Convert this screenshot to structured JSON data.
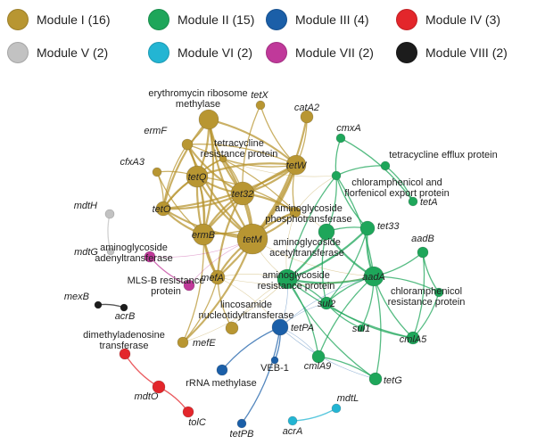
{
  "legend": [
    {
      "label": "Module I (16)",
      "color": "#b89632"
    },
    {
      "label": "Module II (15)",
      "color": "#1ea65a"
    },
    {
      "label": "Module III (4)",
      "color": "#1b5fa8"
    },
    {
      "label": "Module IV (3)",
      "color": "#e3262b"
    },
    {
      "label": "Module V (2)",
      "color": "#c2c2c2"
    },
    {
      "label": "Module VI (2)",
      "color": "#23b5d3"
    },
    {
      "label": "Module VII (2)",
      "color": "#c0399a"
    },
    {
      "label": "Module VIII (2)",
      "color": "#1c1c1c"
    }
  ],
  "nodes": [
    {
      "id": "ery",
      "module": 0,
      "label": "erythromycin ribosome\nmethylase",
      "italic": false
    },
    {
      "id": "tetX",
      "module": 0,
      "label": "tetX",
      "italic": true
    },
    {
      "id": "catA2",
      "module": 0,
      "label": "catA2",
      "italic": true
    },
    {
      "id": "ermF",
      "module": 0,
      "label": "ermF",
      "italic": true
    },
    {
      "id": "trp",
      "module": 0,
      "label": "tetracycline\nresistance protein",
      "italic": false
    },
    {
      "id": "tetW",
      "module": 0,
      "label": "tetW",
      "italic": true
    },
    {
      "id": "cfxA3",
      "module": 0,
      "label": "cfxA3",
      "italic": true
    },
    {
      "id": "tetQ",
      "module": 0,
      "label": "tetQ",
      "italic": true
    },
    {
      "id": "tet32",
      "module": 0,
      "label": "tet32",
      "italic": true
    },
    {
      "id": "tetO",
      "module": 0,
      "label": "tetO",
      "italic": true
    },
    {
      "id": "aph",
      "module": 0,
      "label": "aminoglycoside\nphosphotransferase",
      "italic": false
    },
    {
      "id": "ermB",
      "module": 0,
      "label": "ermB",
      "italic": true
    },
    {
      "id": "tetM",
      "module": 0,
      "label": "tetM",
      "italic": true
    },
    {
      "id": "mefA",
      "module": 0,
      "label": "mefA",
      "italic": true
    },
    {
      "id": "lnt",
      "module": 0,
      "label": "lincosamide\nnucleotidyltransferase",
      "italic": false
    },
    {
      "id": "mefE",
      "module": 0,
      "label": "mefE",
      "italic": true
    },
    {
      "id": "cmxA",
      "module": 1,
      "label": "cmxA",
      "italic": true
    },
    {
      "id": "tep",
      "module": 1,
      "label": "tetracycline efflux protein",
      "italic": false
    },
    {
      "id": "cfe",
      "module": 1,
      "label": "chloramphenicol and\nflorfenicol export protein",
      "italic": false
    },
    {
      "id": "tetA",
      "module": 1,
      "label": "tetA",
      "italic": true
    },
    {
      "id": "tet33",
      "module": 1,
      "label": "tet33",
      "italic": true
    },
    {
      "id": "aac",
      "module": 1,
      "label": "aminoglycoside\nacetyltransferase",
      "italic": false
    },
    {
      "id": "aadB",
      "module": 1,
      "label": "aadB",
      "italic": true
    },
    {
      "id": "arp",
      "module": 1,
      "label": "aminoglycoside\nresistance protein",
      "italic": false
    },
    {
      "id": "aadA",
      "module": 1,
      "label": "aadA",
      "italic": true
    },
    {
      "id": "sul2",
      "module": 1,
      "label": "sul2",
      "italic": true
    },
    {
      "id": "crp",
      "module": 1,
      "label": "chloramphenicol\nresistance protein",
      "italic": false
    },
    {
      "id": "sul1",
      "module": 1,
      "label": "sul1",
      "italic": true
    },
    {
      "id": "cmlA5",
      "module": 1,
      "label": "cmlA5",
      "italic": true
    },
    {
      "id": "cmlA9",
      "module": 1,
      "label": "cmlA9",
      "italic": true
    },
    {
      "id": "tetG",
      "module": 1,
      "label": "tetG",
      "italic": true
    },
    {
      "id": "tetPA",
      "module": 2,
      "label": "tetPA",
      "italic": true
    },
    {
      "id": "veb1",
      "module": 2,
      "label": "VEB-1",
      "italic": false
    },
    {
      "id": "rrna",
      "module": 2,
      "label": "rRNA methylase",
      "italic": false
    },
    {
      "id": "tetPB",
      "module": 2,
      "label": "tetPB",
      "italic": true
    },
    {
      "id": "dmt",
      "module": 3,
      "label": "dimethyladenosine\ntransferase",
      "italic": false
    },
    {
      "id": "mdtO",
      "module": 3,
      "label": "mdtO",
      "italic": true
    },
    {
      "id": "tolC",
      "module": 3,
      "label": "tolC",
      "italic": true
    },
    {
      "id": "mdtH",
      "module": 4,
      "label": "mdtH",
      "italic": true
    },
    {
      "id": "mdtG",
      "module": 4,
      "label": "mdtG",
      "italic": true
    },
    {
      "id": "mdtL",
      "module": 5,
      "label": "mdtL",
      "italic": true
    },
    {
      "id": "acrA",
      "module": 5,
      "label": "acrA",
      "italic": true
    },
    {
      "id": "aat",
      "module": 6,
      "label": "aminoglycoside\nadenyltransferase",
      "italic": false
    },
    {
      "id": "mlsb",
      "module": 6,
      "label": "MLS-B resistance\nprotein",
      "italic": false
    },
    {
      "id": "mexB",
      "module": 7,
      "label": "mexB",
      "italic": true
    },
    {
      "id": "acrB",
      "module": 7,
      "label": "acrB",
      "italic": true
    }
  ],
  "edges": [
    [
      "ery",
      "tetQ"
    ],
    [
      "ery",
      "tet32"
    ],
    [
      "ery",
      "tetW"
    ],
    [
      "ery",
      "tetM"
    ],
    [
      "ery",
      "ermB"
    ],
    [
      "ery",
      "tetO"
    ],
    [
      "ery",
      "ermF"
    ],
    [
      "ery",
      "trp"
    ],
    [
      "ermF",
      "tetQ"
    ],
    [
      "ermF",
      "tet32"
    ],
    [
      "ermF",
      "tetW"
    ],
    [
      "ermF",
      "tetM"
    ],
    [
      "ermF",
      "ermB"
    ],
    [
      "ermF",
      "tetO"
    ],
    [
      "ermF",
      "aph"
    ],
    [
      "tetQ",
      "tet32"
    ],
    [
      "tetQ",
      "tetW"
    ],
    [
      "tetQ",
      "tetM"
    ],
    [
      "tetQ",
      "ermB"
    ],
    [
      "tetQ",
      "tetO"
    ],
    [
      "tetQ",
      "trp"
    ],
    [
      "tetQ",
      "mefA"
    ],
    [
      "tetQ",
      "aph"
    ],
    [
      "tet32",
      "tetW"
    ],
    [
      "tet32",
      "tetM"
    ],
    [
      "tet32",
      "ermB"
    ],
    [
      "tet32",
      "tetO"
    ],
    [
      "tet32",
      "mefA"
    ],
    [
      "tet32",
      "aph"
    ],
    [
      "tet32",
      "trp"
    ],
    [
      "tetW",
      "tetM"
    ],
    [
      "tetW",
      "ermB"
    ],
    [
      "tetW",
      "tetO"
    ],
    [
      "tetW",
      "catA2"
    ],
    [
      "tetW",
      "tetX"
    ],
    [
      "tetW",
      "aph"
    ],
    [
      "tetW",
      "mefA"
    ],
    [
      "tetM",
      "ermB"
    ],
    [
      "tetM",
      "tetO"
    ],
    [
      "tetM",
      "mefA"
    ],
    [
      "tetM",
      "aph"
    ],
    [
      "tetM",
      "trp"
    ],
    [
      "ermB",
      "tetO"
    ],
    [
      "ermB",
      "mefA"
    ],
    [
      "ermB",
      "mefE"
    ],
    [
      "ermB",
      "aph"
    ],
    [
      "ermB",
      "cfxA3"
    ],
    [
      "tetO",
      "cfxA3"
    ],
    [
      "tetO",
      "trp"
    ],
    [
      "tetX",
      "tet32"
    ],
    [
      "catA2",
      "tetM"
    ],
    [
      "trp",
      "tetW"
    ],
    [
      "mefA",
      "mefE"
    ],
    [
      "mefA",
      "lnt"
    ],
    [
      "tetM",
      "mefE"
    ],
    [
      "tetQ",
      "cfxA3"
    ],
    [
      "aph",
      "tetM"
    ],
    [
      "cmxA",
      "cfe"
    ],
    [
      "cmxA",
      "tetA"
    ],
    [
      "tep",
      "cfe"
    ],
    [
      "tep",
      "tetA"
    ],
    [
      "cfe",
      "tet33"
    ],
    [
      "cfe",
      "aadA"
    ],
    [
      "cfe",
      "arp"
    ],
    [
      "cfe",
      "aac"
    ],
    [
      "tet33",
      "aadA"
    ],
    [
      "tet33",
      "arp"
    ],
    [
      "tet33",
      "aac"
    ],
    [
      "tet33",
      "sul2"
    ],
    [
      "aac",
      "aadA"
    ],
    [
      "aac",
      "arp"
    ],
    [
      "aac",
      "sul2"
    ],
    [
      "aadA",
      "arp"
    ],
    [
      "aadA",
      "sul2"
    ],
    [
      "aadA",
      "sul1"
    ],
    [
      "aadA",
      "cmlA5"
    ],
    [
      "aadA",
      "crp"
    ],
    [
      "aadA",
      "cmlA9"
    ],
    [
      "aadA",
      "tetG"
    ],
    [
      "aadA",
      "aadB"
    ],
    [
      "arp",
      "sul2"
    ],
    [
      "arp",
      "cmlA5"
    ],
    [
      "arp",
      "cmlA9"
    ],
    [
      "arp",
      "tetG"
    ],
    [
      "aadB",
      "cmlA5"
    ],
    [
      "aadB",
      "crp"
    ],
    [
      "crp",
      "cmlA5"
    ],
    [
      "sul2",
      "sul1"
    ],
    [
      "cmlA9",
      "tetG"
    ],
    [
      "sul2",
      "cmlA5"
    ],
    [
      "tetPA",
      "veb1"
    ],
    [
      "tetPA",
      "rrna"
    ],
    [
      "tetPA",
      "tetPB"
    ],
    [
      "dmt",
      "mdtO"
    ],
    [
      "mdtO",
      "tolC"
    ],
    [
      "mdtH",
      "mdtG"
    ],
    [
      "mdtL",
      "acrA"
    ],
    [
      "aat",
      "mlsb"
    ],
    [
      "mexB",
      "acrB"
    ],
    [
      "aph",
      "arp"
    ],
    [
      "aph",
      "aac"
    ],
    [
      "tetM",
      "arp"
    ],
    [
      "mefA",
      "arp"
    ],
    [
      "mefA",
      "aadA"
    ],
    [
      "lnt",
      "arp"
    ],
    [
      "tetPA",
      "arp"
    ],
    [
      "tetPA",
      "aadA"
    ],
    [
      "tetM",
      "aadA"
    ],
    [
      "aph",
      "cfe"
    ],
    [
      "trp",
      "cfe"
    ],
    [
      "tetPA",
      "cmlA9"
    ],
    [
      "tetPA",
      "tetG"
    ],
    [
      "mefA",
      "tetPA"
    ],
    [
      "aat",
      "tetM"
    ],
    [
      "mlsb",
      "tetM"
    ],
    [
      "mefE",
      "arp"
    ],
    [
      "tetPA",
      "sul2"
    ]
  ]
}
